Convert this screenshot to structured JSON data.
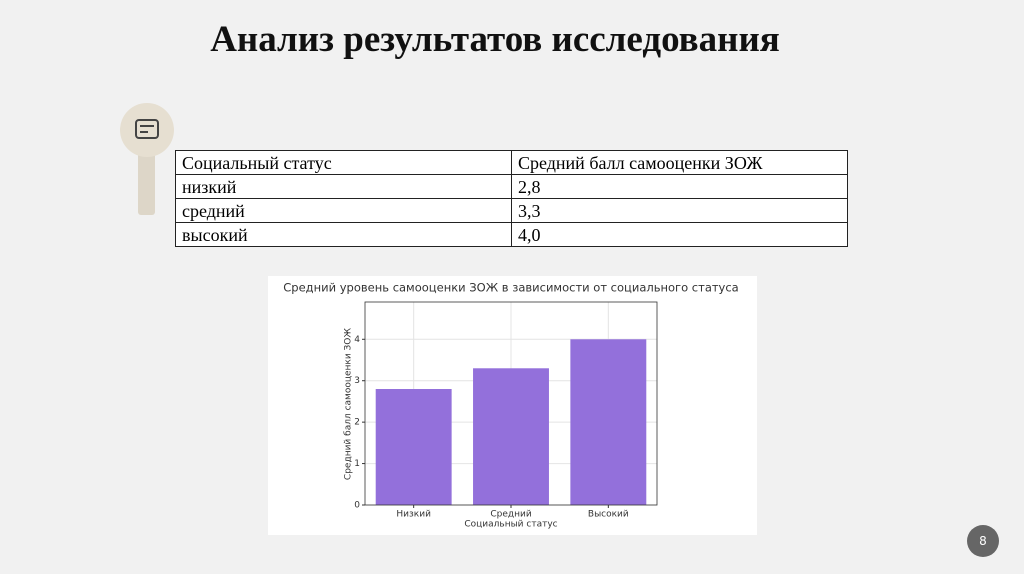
{
  "header": {
    "title": "Анализ результатов исследования"
  },
  "table": {
    "header": [
      "Социальный статус",
      "Средний балл самооценки ЗОЖ"
    ],
    "rows": [
      [
        "низкий",
        "2,8"
      ],
      [
        "средний",
        "3,3"
      ],
      [
        "высокий",
        "4,0"
      ]
    ]
  },
  "chart_data": {
    "type": "bar",
    "title": "Средний уровень самооценки ЗОЖ в зависимости от социального статуса",
    "x_label": "Социальный статус",
    "y_label": "Средний балл самооценки ЗОЖ",
    "categories": [
      "Низкий",
      "Средний",
      "Высокий"
    ],
    "values": [
      2.8,
      3.3,
      4.0
    ],
    "color": "#9370db",
    "ylim": [
      0,
      4.9
    ],
    "yticks": [
      0,
      1,
      2,
      3,
      4
    ],
    "grid": true
  },
  "page_number": "8"
}
